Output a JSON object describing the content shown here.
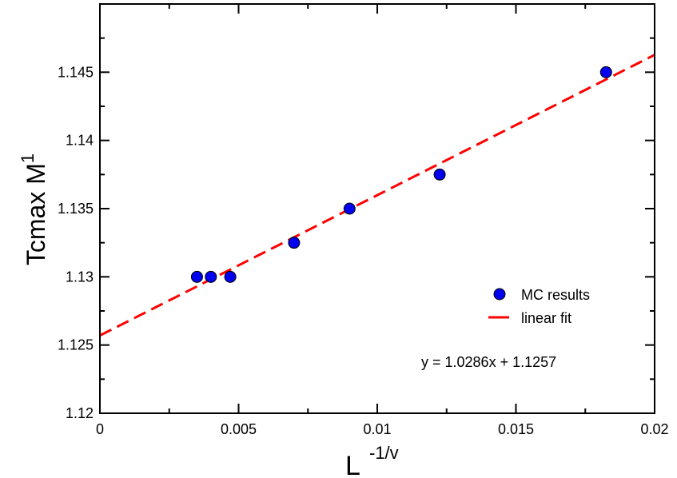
{
  "chart_data": {
    "type": "scatter",
    "title": "",
    "xlabel": {
      "main": "L",
      "superscript": "-1/v"
    },
    "ylabel": {
      "main": "Tcmax M",
      "superscript": "1"
    },
    "xlim": [
      0,
      0.02
    ],
    "ylim": [
      1.12,
      1.15
    ],
    "x_ticks": [
      0,
      0.005,
      0.01,
      0.015,
      0.02
    ],
    "x_tick_labels": [
      "0",
      "0.005",
      "0.01",
      "0.015",
      "0.02"
    ],
    "y_ticks": [
      1.12,
      1.125,
      1.13,
      1.135,
      1.14,
      1.145
    ],
    "y_tick_labels": [
      "1.12",
      "1.125",
      "1.13",
      "1.135",
      "1.14",
      "1.145"
    ],
    "grid": false,
    "series": [
      {
        "name": "MC results",
        "kind": "markers",
        "color": "#0000ee",
        "x": [
          0.0035,
          0.004,
          0.0047,
          0.007,
          0.009,
          0.01225,
          0.01825
        ],
        "y": [
          1.13,
          1.13,
          1.13,
          1.1325,
          1.135,
          1.1375,
          1.145
        ]
      },
      {
        "name": "linear fit",
        "kind": "dashed-line",
        "color": "#ff0000",
        "slope": 1.0286,
        "intercept": 1.1257
      }
    ],
    "legend": {
      "position": "right-middle",
      "entries": [
        "MC results",
        "linear fit"
      ]
    },
    "annotation": "y = 1.0286x + 1.1257"
  }
}
